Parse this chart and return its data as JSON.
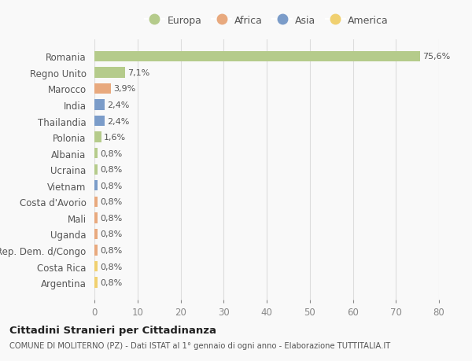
{
  "categories": [
    "Romania",
    "Regno Unito",
    "Marocco",
    "India",
    "Thailandia",
    "Polonia",
    "Albania",
    "Ucraina",
    "Vietnam",
    "Costa d'Avorio",
    "Mali",
    "Uganda",
    "Rep. Dem. d/Congo",
    "Costa Rica",
    "Argentina"
  ],
  "values": [
    75.6,
    7.1,
    3.9,
    2.4,
    2.4,
    1.6,
    0.8,
    0.8,
    0.8,
    0.8,
    0.8,
    0.8,
    0.8,
    0.8,
    0.8
  ],
  "labels": [
    "75,6%",
    "7,1%",
    "3,9%",
    "2,4%",
    "2,4%",
    "1,6%",
    "0,8%",
    "0,8%",
    "0,8%",
    "0,8%",
    "0,8%",
    "0,8%",
    "0,8%",
    "0,8%",
    "0,8%"
  ],
  "continents": [
    "Europa",
    "Europa",
    "Africa",
    "Asia",
    "Asia",
    "Europa",
    "Europa",
    "Europa",
    "Asia",
    "Africa",
    "Africa",
    "Africa",
    "Africa",
    "America",
    "America"
  ],
  "continent_colors": {
    "Europa": "#b5cb8b",
    "Africa": "#e8a97e",
    "Asia": "#7b9cc9",
    "America": "#f0d070"
  },
  "legend_items": [
    "Europa",
    "Africa",
    "Asia",
    "America"
  ],
  "title": "Cittadini Stranieri per Cittadinanza",
  "subtitle": "COMUNE DI MOLITERNO (PZ) - Dati ISTAT al 1° gennaio di ogni anno - Elaborazione TUTTITALIA.IT",
  "xlim": [
    0,
    80
  ],
  "xticks": [
    0,
    10,
    20,
    30,
    40,
    50,
    60,
    70,
    80
  ],
  "bg_color": "#f9f9f9",
  "grid_color": "#dddddd",
  "bar_height": 0.65
}
